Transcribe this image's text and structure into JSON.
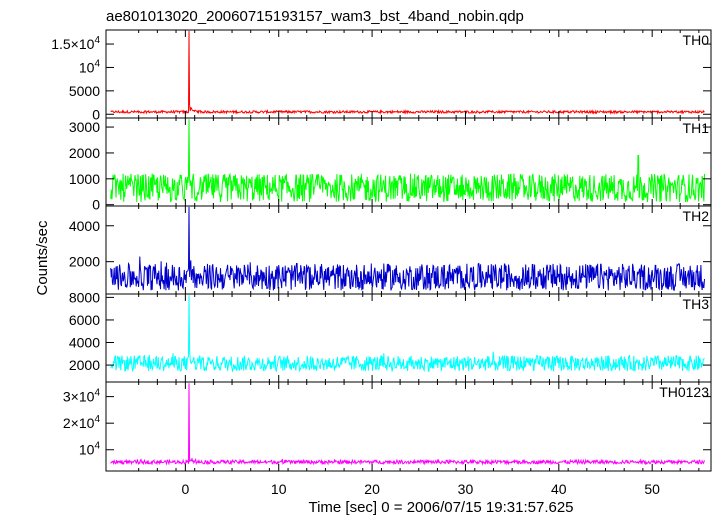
{
  "chart_data": {
    "type": "line",
    "title": "ae801013020_20060715193157_wam3_bst_4band_nobin.qdp",
    "xlabel": "Time [sec] 0 = 2006/07/15 19:31:57.625",
    "ylabel": "Counts/sec",
    "xlim": [
      -8.5,
      56.3
    ],
    "x_ticks": [
      "0",
      "10",
      "20",
      "30",
      "40",
      "50"
    ],
    "x_tick_values": [
      0,
      10,
      20,
      30,
      40,
      50
    ],
    "grid": false,
    "panels": [
      {
        "name": "TH0",
        "color": "#ff0000",
        "ylim": [
          -800,
          18000
        ],
        "y_ticks": [
          {
            "v": 0,
            "label": "0"
          },
          {
            "v": 5000,
            "label": "5000"
          },
          {
            "v": 10000,
            "label": "10",
            "exp": "4"
          },
          {
            "v": 15000,
            "label": "1.5×10",
            "exp": "4"
          }
        ],
        "x_start": -8.0,
        "x_end": 55.6,
        "baseline": 500,
        "noise": 250,
        "peak_time": 0.4,
        "peak_value": 17800
      },
      {
        "name": "TH1",
        "color": "#00ff00",
        "ylim": [
          -50,
          3350
        ],
        "y_ticks": [
          {
            "v": 0,
            "label": "0"
          },
          {
            "v": 1000,
            "label": "1000"
          },
          {
            "v": 2000,
            "label": "2000"
          },
          {
            "v": 3000,
            "label": "3000"
          }
        ],
        "x_start": -8.0,
        "x_end": 55.6,
        "baseline": 650,
        "noise": 550,
        "peak_time": 0.4,
        "peak_value": 3300,
        "secondary_peak_time": 48.5,
        "secondary_peak_value": 1900
      },
      {
        "name": "TH2",
        "color": "#0000cc",
        "ylim": [
          200,
          5100
        ],
        "y_ticks": [
          {
            "v": 2000,
            "label": "2000"
          },
          {
            "v": 4000,
            "label": "4000"
          }
        ],
        "x_start": -8.0,
        "x_end": 55.6,
        "baseline": 1150,
        "noise": 750,
        "peak_time": 0.4,
        "peak_value": 5050
      },
      {
        "name": "TH3",
        "color": "#00ffff",
        "ylim": [
          500,
          8300
        ],
        "y_ticks": [
          {
            "v": 2000,
            "label": "2000"
          },
          {
            "v": 4000,
            "label": "4000"
          },
          {
            "v": 6000,
            "label": "6000"
          },
          {
            "v": 8000,
            "label": "8000"
          }
        ],
        "x_start": -8.0,
        "x_end": 55.6,
        "baseline": 2150,
        "noise": 700,
        "peak_time": 0.4,
        "peak_value": 8200
      },
      {
        "name": "TH0123",
        "color": "#ff00ff",
        "ylim": [
          2000,
          35500
        ],
        "y_ticks": [
          {
            "v": 10000,
            "label": "10",
            "exp": "4"
          },
          {
            "v": 20000,
            "label": "2×10",
            "exp": "4"
          },
          {
            "v": 30000,
            "label": "3×10",
            "exp": "4"
          }
        ],
        "x_start": -8.0,
        "x_end": 55.6,
        "baseline": 5400,
        "noise": 700,
        "peak_time": 0.4,
        "peak_value": 35000
      }
    ]
  }
}
